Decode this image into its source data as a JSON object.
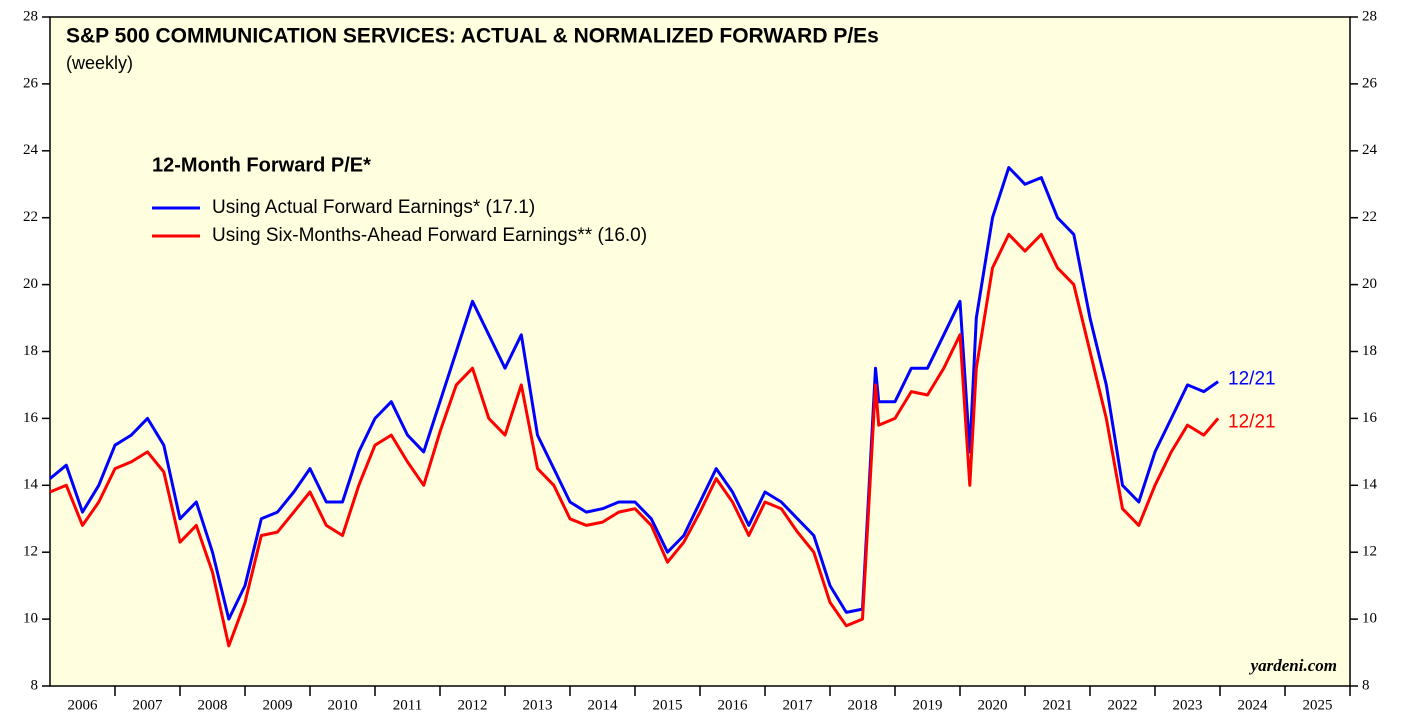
{
  "chart_data": {
    "type": "line",
    "title": "S&P 500 COMMUNICATION SERVICES: ACTUAL & NORMALIZED FORWARD P/Es",
    "subtitle": "(weekly)",
    "legend_title": "12-Month Forward P/E*",
    "credit": "yardeni.com",
    "background": "#ffffe0",
    "x": [
      2006.0,
      2006.25,
      2006.5,
      2006.75,
      2007.0,
      2007.25,
      2007.5,
      2007.75,
      2008.0,
      2008.25,
      2008.5,
      2008.75,
      2009.0,
      2009.25,
      2009.5,
      2009.75,
      2010.0,
      2010.25,
      2010.5,
      2010.75,
      2011.0,
      2011.25,
      2011.5,
      2011.75,
      2012.0,
      2012.25,
      2012.5,
      2012.75,
      2013.0,
      2013.25,
      2013.5,
      2013.75,
      2014.0,
      2014.25,
      2014.5,
      2014.75,
      2015.0,
      2015.25,
      2015.5,
      2015.75,
      2016.0,
      2016.25,
      2016.5,
      2016.75,
      2017.0,
      2017.25,
      2017.5,
      2017.75,
      2018.0,
      2018.25,
      2018.5,
      2018.7,
      2018.75,
      2019.0,
      2019.25,
      2019.5,
      2019.75,
      2020.0,
      2020.15,
      2020.25,
      2020.5,
      2020.75,
      2021.0,
      2021.25,
      2021.5,
      2021.75,
      2022.0,
      2022.25,
      2022.5,
      2022.75,
      2023.0,
      2023.25,
      2023.5,
      2023.75,
      2023.97
    ],
    "series": [
      {
        "name": "Using Actual Forward Earnings* (17.1)",
        "color": "#0000ff",
        "end_label": "12/21",
        "values": [
          14.2,
          14.6,
          13.2,
          14.0,
          15.2,
          15.5,
          16.0,
          15.2,
          13.0,
          13.5,
          12.0,
          10.0,
          11.0,
          13.0,
          13.2,
          13.8,
          14.5,
          13.5,
          13.5,
          15.0,
          16.0,
          16.5,
          15.5,
          15.0,
          16.5,
          18.0,
          19.5,
          18.5,
          17.5,
          18.5,
          15.5,
          14.5,
          13.5,
          13.2,
          13.3,
          13.5,
          13.5,
          13.0,
          12.0,
          12.5,
          13.5,
          14.5,
          13.8,
          12.8,
          13.8,
          13.5,
          13.0,
          12.5,
          11.0,
          10.2,
          10.3,
          17.5,
          16.5,
          16.5,
          17.5,
          17.5,
          18.5,
          19.5,
          15.0,
          19.0,
          22.0,
          23.5,
          23.0,
          23.2,
          22.0,
          21.5,
          19.0,
          17.0,
          14.0,
          13.5,
          15.0,
          16.0,
          17.0,
          16.8,
          17.1
        ]
      },
      {
        "name": "Using Six-Months-Ahead Forward Earnings** (16.0)",
        "color": "#ff0000",
        "end_label": "12/21",
        "values": [
          13.8,
          14.0,
          12.8,
          13.5,
          14.5,
          14.7,
          15.0,
          14.4,
          12.3,
          12.8,
          11.4,
          9.2,
          10.5,
          12.5,
          12.6,
          13.2,
          13.8,
          12.8,
          12.5,
          14.0,
          15.2,
          15.5,
          14.7,
          14.0,
          15.6,
          17.0,
          17.5,
          16.0,
          15.5,
          17.0,
          14.5,
          14.0,
          13.0,
          12.8,
          12.9,
          13.2,
          13.3,
          12.8,
          11.7,
          12.3,
          13.2,
          14.2,
          13.5,
          12.5,
          13.5,
          13.3,
          12.6,
          12.0,
          10.5,
          9.8,
          10.0,
          17.0,
          15.8,
          16.0,
          16.8,
          16.7,
          17.5,
          18.5,
          14.0,
          17.5,
          20.5,
          21.5,
          21.0,
          21.5,
          20.5,
          20.0,
          18.0,
          16.0,
          13.3,
          12.8,
          14.0,
          15.0,
          15.8,
          15.5,
          16.0
        ]
      }
    ],
    "xlim": [
      2006,
      2026
    ],
    "xticks": [
      {
        "value": 2006.5,
        "label": "2006"
      },
      {
        "value": 2007.5,
        "label": "2007"
      },
      {
        "value": 2008.5,
        "label": "2008"
      },
      {
        "value": 2009.5,
        "label": "2009"
      },
      {
        "value": 2010.5,
        "label": "2010"
      },
      {
        "value": 2011.5,
        "label": "2011"
      },
      {
        "value": 2012.5,
        "label": "2012"
      },
      {
        "value": 2013.5,
        "label": "2013"
      },
      {
        "value": 2014.5,
        "label": "2014"
      },
      {
        "value": 2015.5,
        "label": "2015"
      },
      {
        "value": 2016.5,
        "label": "2016"
      },
      {
        "value": 2017.5,
        "label": "2017"
      },
      {
        "value": 2018.5,
        "label": "2018"
      },
      {
        "value": 2019.5,
        "label": "2019"
      },
      {
        "value": 2020.5,
        "label": "2020"
      },
      {
        "value": 2021.5,
        "label": "2021"
      },
      {
        "value": 2022.5,
        "label": "2022"
      },
      {
        "value": 2023.5,
        "label": "2023"
      },
      {
        "value": 2024.5,
        "label": "2024"
      },
      {
        "value": 2025.5,
        "label": "2025"
      }
    ],
    "ylim": [
      8,
      28
    ],
    "yticks": [
      8,
      10,
      12,
      14,
      16,
      18,
      20,
      22,
      24,
      26,
      28
    ],
    "y2lim": [
      8,
      28
    ],
    "y2ticks": [
      8,
      10,
      12,
      14,
      16,
      18,
      20,
      22,
      24,
      26,
      28
    ]
  }
}
